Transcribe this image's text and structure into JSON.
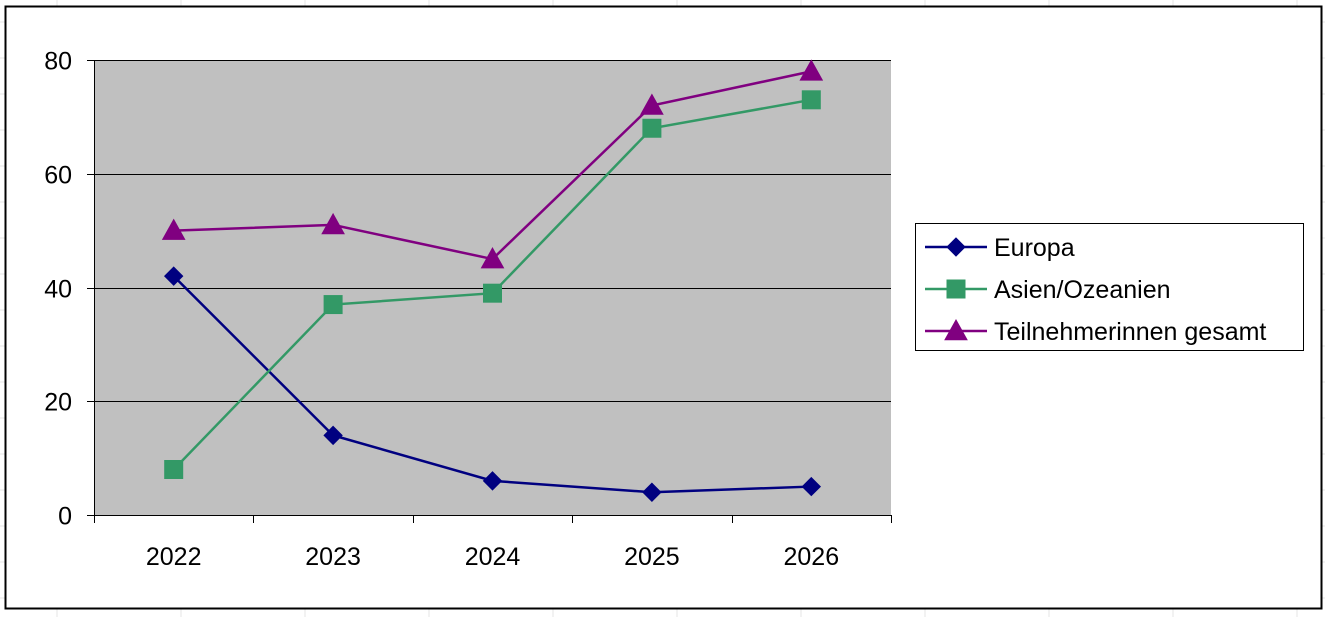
{
  "chart_data": {
    "type": "line",
    "title": "",
    "xlabel": "",
    "ylabel": "",
    "categories": [
      "2022",
      "2023",
      "2024",
      "2025",
      "2026"
    ],
    "ylim": [
      0,
      80
    ],
    "yticks": [
      0,
      20,
      40,
      60,
      80
    ],
    "grid": "horizontal major lines",
    "plot_background": "#c0c0c0",
    "legend_position": "right",
    "series": [
      {
        "name": "Europa",
        "marker": "diamond",
        "color": "#000080",
        "values": [
          42,
          14,
          6,
          4,
          5
        ]
      },
      {
        "name": "Asien/Ozeanien",
        "marker": "square",
        "color": "#339966",
        "values": [
          8,
          37,
          39,
          68,
          73
        ]
      },
      {
        "name": "Teilnehmerinnen gesamt",
        "marker": "triangle",
        "color": "#800080",
        "values": [
          50,
          51,
          45,
          72,
          78
        ]
      }
    ]
  }
}
